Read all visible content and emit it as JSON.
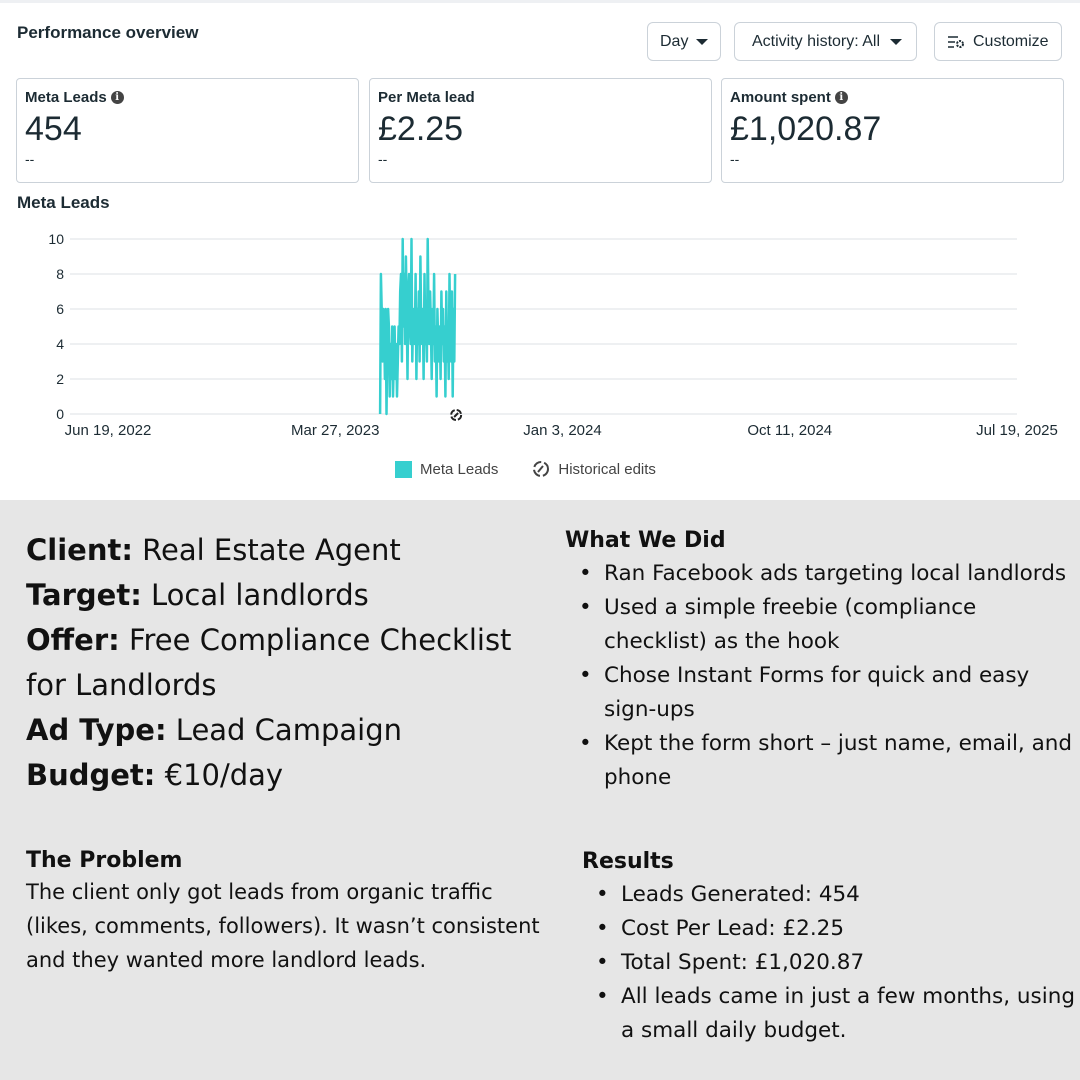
{
  "header": {
    "title": "Performance overview",
    "day_label": "Day",
    "activity_label": "Activity history: All",
    "customize_label": "Customize"
  },
  "cards": [
    {
      "label": "Meta Leads",
      "value": "454",
      "sub": "--",
      "info": true
    },
    {
      "label": "Per Meta lead",
      "value": "£2.25",
      "sub": "--",
      "info": false
    },
    {
      "label": "Amount spent",
      "value": "£1,020.87",
      "sub": "--",
      "info": true
    }
  ],
  "chart_data": {
    "type": "line",
    "title": "Meta Leads",
    "xlabel": "",
    "ylabel": "",
    "x_range": [
      "2022-06-19",
      "2025-07-19"
    ],
    "x_ticks": [
      "Jun 19, 2022",
      "Mar 27, 2023",
      "Jan 3, 2024",
      "Oct 11, 2024",
      "Jul 19, 2025"
    ],
    "y_ticks": [
      0,
      2,
      4,
      6,
      8,
      10
    ],
    "ylim": [
      0,
      10
    ],
    "series": [
      {
        "name": "Meta Leads",
        "color": "#36cfcf",
        "start_date": "2023-05-22",
        "values": [
          0,
          8,
          6,
          3,
          6,
          5,
          2,
          6,
          0,
          4,
          6,
          5,
          1,
          4,
          2,
          5,
          1,
          3,
          5,
          2,
          4,
          1,
          3,
          5,
          4,
          7,
          8,
          3,
          10,
          5,
          8,
          4,
          9,
          6,
          2,
          7,
          8,
          5,
          4,
          10,
          3,
          6,
          5,
          4,
          8,
          2,
          6,
          4,
          7,
          3,
          9,
          5,
          4,
          6,
          2,
          8,
          4,
          5,
          3,
          10,
          6,
          4,
          7,
          5,
          2,
          6,
          4,
          8,
          3,
          5,
          1,
          6,
          4,
          3,
          5,
          2,
          7,
          4,
          6,
          3,
          5,
          1,
          7,
          3,
          5,
          2,
          8,
          4,
          3,
          7,
          1,
          6,
          3,
          8
        ]
      }
    ],
    "annotation": "historical-edit-marker",
    "legend": [
      "Meta Leads",
      "Historical edits"
    ],
    "legend_position": "bottom"
  },
  "case": {
    "facts": [
      {
        "k": "Client:",
        "v": "Real Estate Agent"
      },
      {
        "k": "Target:",
        "v": "Local landlords"
      },
      {
        "k": "Offer:",
        "v": "Free Compliance Checklist for Landlords"
      },
      {
        "k": "Ad Type:",
        "v": "Lead Campaign"
      },
      {
        "k": "Budget:",
        "v": "€10/day"
      }
    ],
    "problem_title": "The Problem",
    "problem_text": "The client only got leads from organic traffic (likes, comments, followers). It wasn’t consistent and they wanted more landlord leads.",
    "did_title": "What We Did",
    "did": [
      "Ran Facebook ads targeting local landlords",
      "Used a simple freebie (compliance checklist) as the hook",
      "Chose Instant Forms for quick and easy sign-ups",
      "Kept the form short – just name, email, and phone"
    ],
    "results_title": "Results",
    "results": [
      "Leads Generated: 454",
      "Cost Per Lead: £2.25",
      "Total Spent: £1,020.87",
      "All leads came in just a few months, using a small daily budget."
    ]
  }
}
